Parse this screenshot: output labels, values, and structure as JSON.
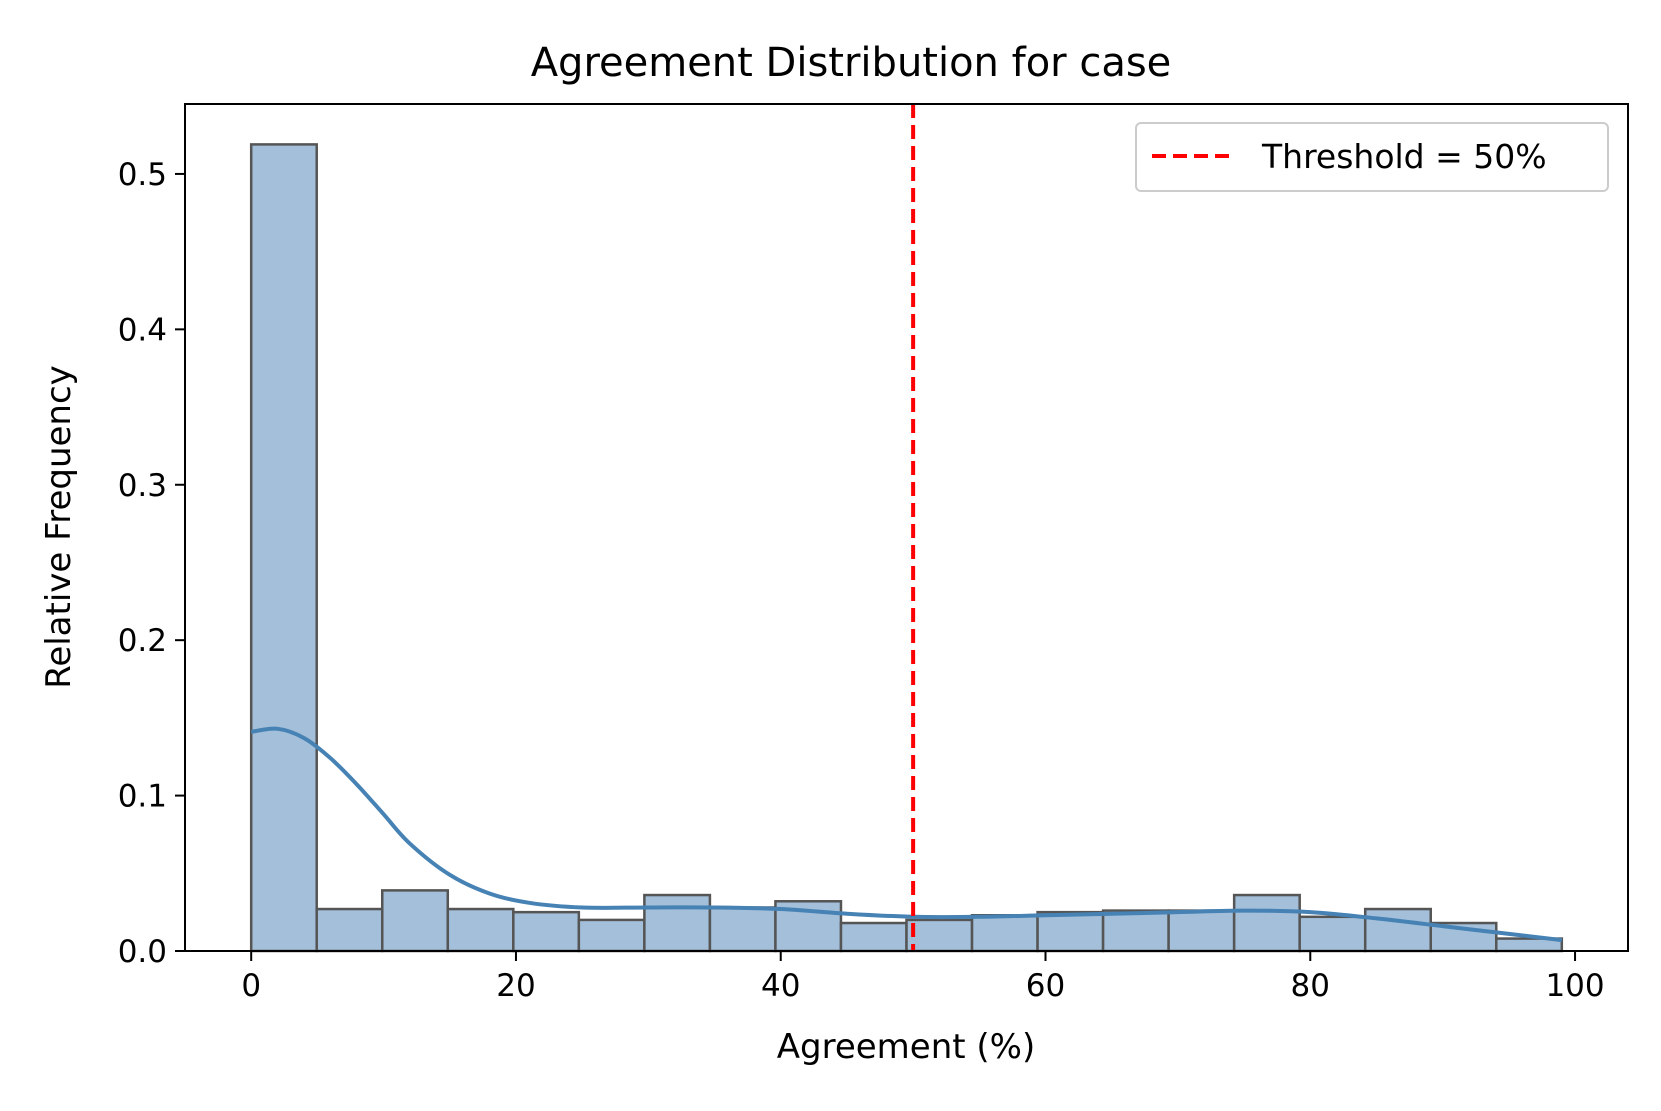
{
  "chart_data": {
    "type": "bar",
    "title": "Agreement Distribution for case",
    "xlabel": "Agreement (%)",
    "ylabel": "Relative Frequency",
    "xlim": [
      -5,
      104
    ],
    "ylim": [
      0,
      0.545
    ],
    "grid": false,
    "legend_position": "top-right",
    "x_ticks": [
      {
        "value": 0,
        "label": "0"
      },
      {
        "value": 20,
        "label": "20"
      },
      {
        "value": 40,
        "label": "40"
      },
      {
        "value": 60,
        "label": "60"
      },
      {
        "value": 80,
        "label": "80"
      },
      {
        "value": 100,
        "label": "100"
      }
    ],
    "y_ticks": [
      {
        "value": 0.0,
        "label": "0.0"
      },
      {
        "value": 0.1,
        "label": "0.1"
      },
      {
        "value": 0.2,
        "label": "0.2"
      },
      {
        "value": 0.3,
        "label": "0.3"
      },
      {
        "value": 0.4,
        "label": "0.4"
      },
      {
        "value": 0.5,
        "label": "0.5"
      }
    ],
    "bins": [
      {
        "start": 0.0,
        "end": 4.95,
        "value": 0.519
      },
      {
        "start": 4.95,
        "end": 9.9,
        "value": 0.027
      },
      {
        "start": 9.9,
        "end": 14.85,
        "value": 0.039
      },
      {
        "start": 14.85,
        "end": 19.8,
        "value": 0.027
      },
      {
        "start": 19.8,
        "end": 24.75,
        "value": 0.025
      },
      {
        "start": 24.75,
        "end": 29.7,
        "value": 0.02
      },
      {
        "start": 29.7,
        "end": 34.65,
        "value": 0.036
      },
      {
        "start": 34.65,
        "end": 39.6,
        "value": 0.028
      },
      {
        "start": 39.6,
        "end": 44.55,
        "value": 0.032
      },
      {
        "start": 44.55,
        "end": 49.5,
        "value": 0.018
      },
      {
        "start": 49.5,
        "end": 54.45,
        "value": 0.02
      },
      {
        "start": 54.45,
        "end": 59.4,
        "value": 0.023
      },
      {
        "start": 59.4,
        "end": 64.35,
        "value": 0.025
      },
      {
        "start": 64.35,
        "end": 69.3,
        "value": 0.026
      },
      {
        "start": 69.3,
        "end": 74.25,
        "value": 0.026
      },
      {
        "start": 74.25,
        "end": 79.2,
        "value": 0.036
      },
      {
        "start": 79.2,
        "end": 84.15,
        "value": 0.022
      },
      {
        "start": 84.15,
        "end": 89.1,
        "value": 0.027
      },
      {
        "start": 89.1,
        "end": 94.05,
        "value": 0.018
      },
      {
        "start": 94.05,
        "end": 99.0,
        "value": 0.008
      }
    ],
    "kde": {
      "x": [
        0,
        2,
        4,
        6,
        8,
        10,
        12,
        15,
        18,
        21,
        25,
        30,
        35,
        40,
        45,
        50,
        55,
        60,
        65,
        70,
        75,
        80,
        85,
        90,
        95,
        99
      ],
      "y": [
        0.141,
        0.143,
        0.137,
        0.124,
        0.107,
        0.088,
        0.069,
        0.049,
        0.037,
        0.031,
        0.028,
        0.028,
        0.028,
        0.027,
        0.024,
        0.022,
        0.022,
        0.023,
        0.024,
        0.025,
        0.026,
        0.025,
        0.021,
        0.016,
        0.011,
        0.007
      ]
    },
    "threshold": {
      "value": 50,
      "label": "Threshold = 50%"
    },
    "colors": {
      "bar_fill": "#a3bfda",
      "bar_edge": "#555555",
      "kde_line": "#4682b4",
      "threshold_line": "#ff0000",
      "axes": "#000000"
    }
  }
}
